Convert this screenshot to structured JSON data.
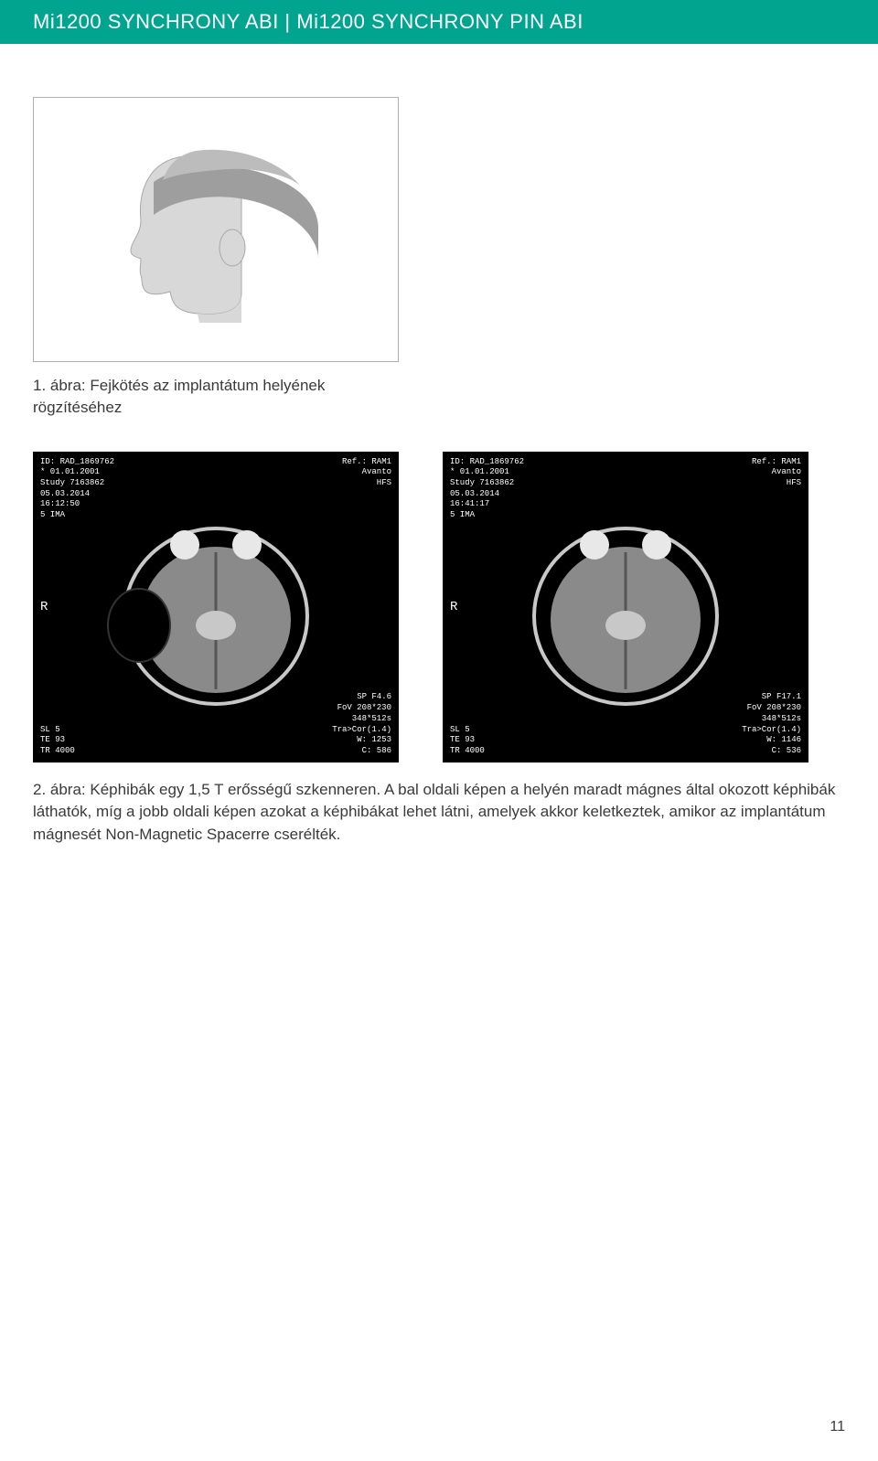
{
  "header": {
    "text": "Mi1200 SYNCHRONY ABI | Mi1200 SYNCHRONY PIN ABI",
    "bg_color": "#00a48f",
    "text_color": "#ffffff"
  },
  "figure1": {
    "caption": "1. ábra: Fejkötés az implantátum helyének rögzítéséhez",
    "head_fill": "#d8d8d8",
    "band_fill": "#9e9e9e",
    "cap_fill": "#bcbcbc",
    "outline": "#a8a8a8"
  },
  "mri": {
    "left": {
      "tl": "ID: RAD_1869762\n* 01.01.2001\nStudy 7163862\n05.03.2014\n16:12:50\n5 IMA",
      "tr": "Ref.: RAM1\nAvanto\nHFS",
      "l": "R",
      "bl": "SL 5\nTE 93\nTR 4000",
      "br": "SP F4.6\nFoV 208*230\n348*512s\nTra>Cor(1.4)\nW: 1253\nC: 586"
    },
    "right": {
      "tl": "ID: RAD_1869762\n* 01.01.2001\nStudy 7163862\n05.03.2014\n16:41:17\n5 IMA",
      "tr": "Ref.: RAM1\nAvanto\nHFS",
      "l": "R",
      "bl": "SL 5\nTE 93\nTR 4000",
      "br": "SP F17.1\nFoV 208*230\n348*512s\nTra>Cor(1.4)\nW: 1146\nC: 536"
    },
    "brain_gray": "#8a8a8a",
    "brain_light": "#c8c8c8",
    "eye_fill": "#e8e8e8"
  },
  "body_text": "2. ábra: Képhibák egy 1,5 T erősségű szkenneren. A bal oldali képen a helyén maradt mágnes által okozott képhibák láthatók, míg a jobb oldali képen azokat a képhibákat lehet látni, amelyek akkor keletkeztek, amikor az implantátum mágnesét Non-Magnetic Spacerre cserélték.",
  "text_color": "#3a3a3a",
  "page_number": "11"
}
